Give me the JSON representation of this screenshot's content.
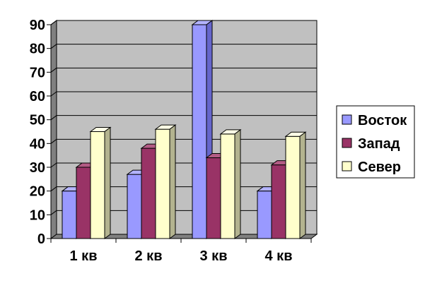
{
  "chart_data": {
    "type": "bar",
    "style": "3d-clustered-column",
    "categories": [
      "1 кв",
      "2 кв",
      "3 кв",
      "4 кв"
    ],
    "series": [
      {
        "name": "Восток",
        "values": [
          20,
          27,
          90,
          20
        ],
        "color": "#9999ff",
        "side": "#6666cc",
        "top": "#b3b3ff"
      },
      {
        "name": "Запад",
        "values": [
          30,
          38,
          34,
          31
        ],
        "color": "#993366",
        "side": "#6b2347",
        "top": "#b35c85"
      },
      {
        "name": "Север",
        "values": [
          45,
          46,
          44,
          43
        ],
        "color": "#ffffcc",
        "side": "#b3b38f",
        "top": "#ffffe6"
      }
    ],
    "y_ticks": [
      "0",
      "10",
      "20",
      "30",
      "40",
      "50",
      "60",
      "70",
      "80",
      "90"
    ],
    "ylim": [
      0,
      90
    ],
    "grid": true,
    "legend": "right",
    "colors": {
      "wall": "#c0c0c0",
      "floor": "#808080",
      "grid": "#000000"
    }
  }
}
